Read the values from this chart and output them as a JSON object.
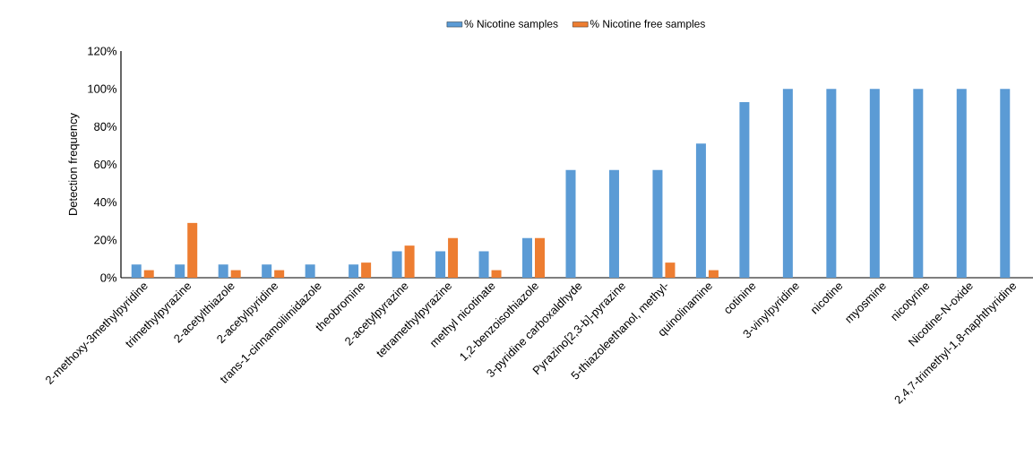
{
  "chart_data": {
    "type": "bar",
    "ylabel": "Detection frequency",
    "categories": [
      "2-methoxy-3methylpyridine",
      "trimethylpyrazine",
      "2-acetylthiazole",
      "2-acetylpyridine",
      "trans-1-cinnamoilimidazole",
      "theobromine",
      "2-acetylpyrazine",
      "tetramethylpyrazine",
      "methyl nicotinate",
      "1,2-benzoisothiazole",
      "3-pyridine carboxaldhyde",
      "Pyrazino[2,3-b]-pyrazine",
      "5-thiazoleethanol, methyl-",
      "quinolinamine",
      "cotinine",
      "3-vinylpyridine",
      "nicotine",
      "myosmine",
      "nicotyrine",
      "Nicotine-N-oxide",
      "2,4,7-trimethyl-1,8-naphthyridine"
    ],
    "series": [
      {
        "name": "% Nicotine samples",
        "color": "#5b9bd5",
        "values": [
          7,
          7,
          7,
          7,
          7,
          7,
          14,
          14,
          14,
          21,
          57,
          57,
          57,
          71,
          93,
          100,
          100,
          100,
          100,
          100,
          100
        ]
      },
      {
        "name": "% Nicotine free samples",
        "color": "#ed7d31",
        "values": [
          4,
          29,
          4,
          4,
          0,
          8,
          17,
          21,
          4,
          21,
          0,
          0,
          8,
          4,
          0,
          0,
          0,
          0,
          0,
          0,
          0
        ]
      }
    ],
    "ylim": [
      0,
      120
    ],
    "yticks": [
      {
        "value": 0,
        "label": "0%"
      },
      {
        "value": 20,
        "label": "20%"
      },
      {
        "value": 40,
        "label": "40%"
      },
      {
        "value": 60,
        "label": "60%"
      },
      {
        "value": 80,
        "label": "80%"
      },
      {
        "value": 100,
        "label": "100%"
      },
      {
        "value": 120,
        "label": "120%"
      }
    ],
    "legend": "top"
  }
}
